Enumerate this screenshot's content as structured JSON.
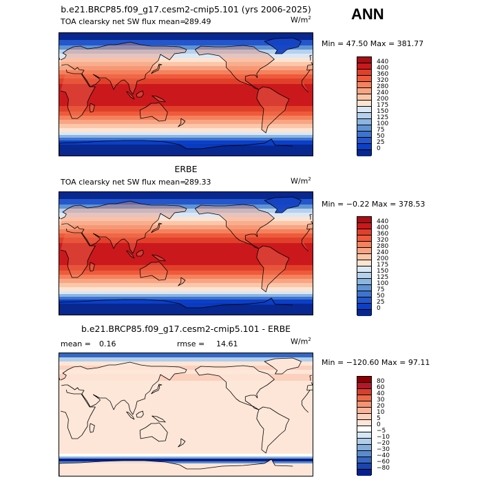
{
  "season": "ANN",
  "panels": [
    {
      "id": "model",
      "title": "b.e21.BRCP85.f09_g17.cesm2-cmip5.101 (yrs 2006-2025)",
      "field": "TOA clearsky net SW flux",
      "mean_label": "mean=",
      "mean": "289.49",
      "units_base": "W/m",
      "units_exp": "2",
      "minmax": "Min =  47.50 Max = 381.77",
      "levels": [
        "440",
        "400",
        "360",
        "320",
        "280",
        "240",
        "200",
        "175",
        "150",
        "125",
        "100",
        "75",
        "50",
        "25",
        "0"
      ],
      "colors": [
        "#a50f15",
        "#cb181d",
        "#e0402a",
        "#ef5a3c",
        "#f4825c",
        "#f8a585",
        "#fbc7a8",
        "#fde4d2",
        "#dae8f6",
        "#b7d1ec",
        "#8cb5e0",
        "#5f93d4",
        "#3e74cf",
        "#2456cc",
        "#0b3fc8",
        "#08278f"
      ]
    },
    {
      "id": "obs",
      "title": "ERBE",
      "field": "TOA clearsky net SW flux",
      "mean_label": "mean=",
      "mean": "289.33",
      "units_base": "W/m",
      "units_exp": "2",
      "minmax": "Min =  −0.22 Max = 378.53",
      "levels": [
        "440",
        "400",
        "360",
        "320",
        "280",
        "240",
        "200",
        "175",
        "150",
        "125",
        "100",
        "75",
        "50",
        "25",
        "0"
      ],
      "colors": [
        "#a50f15",
        "#cb181d",
        "#e0402a",
        "#ef5a3c",
        "#f4825c",
        "#f8a585",
        "#fbc7a8",
        "#fde4d2",
        "#dae8f6",
        "#b7d1ec",
        "#8cb5e0",
        "#5f93d4",
        "#3e74cf",
        "#2456cc",
        "#0b3fc8",
        "#08278f"
      ]
    },
    {
      "id": "diff",
      "title": "b.e21.BRCP85.f09_g17.cesm2-cmip5.101 - ERBE",
      "mean_label": "mean =",
      "mean": "0.16",
      "rmse_label": "rmse =",
      "rmse": "14.61",
      "units_base": "W/m",
      "units_exp": "2",
      "minmax": "Min = −120.60 Max =  97.11",
      "levels": [
        "80",
        "60",
        "40",
        "30",
        "20",
        "10",
        "5",
        "0",
        "−5",
        "−10",
        "−20",
        "−30",
        "−40",
        "−60",
        "−80"
      ],
      "colors": [
        "#8b0000",
        "#b2182b",
        "#d6402f",
        "#ec6a48",
        "#f59373",
        "#f9b59b",
        "#fbd0bc",
        "#fde6d8",
        "#ffffff",
        "#d6e6f5",
        "#b0cde9",
        "#84addb",
        "#5b8bcd",
        "#3567c3",
        "#1c44b0",
        "#08208c"
      ]
    }
  ],
  "chart_data": [
    {
      "type": "heatmap",
      "title": "b.e21.BRCP85.f09_g17.cesm2-cmip5.101 (yrs 2006-2025)",
      "field": "TOA clearsky net SW flux",
      "units": "W/m2",
      "mean": 289.49,
      "min": 47.5,
      "max": 381.77,
      "contour_levels": [
        0,
        25,
        50,
        75,
        100,
        125,
        150,
        175,
        200,
        240,
        280,
        320,
        360,
        400,
        440
      ]
    },
    {
      "type": "heatmap",
      "title": "ERBE",
      "field": "TOA clearsky net SW flux",
      "units": "W/m2",
      "mean": 289.33,
      "min": -0.22,
      "max": 378.53,
      "contour_levels": [
        0,
        25,
        50,
        75,
        100,
        125,
        150,
        175,
        200,
        240,
        280,
        320,
        360,
        400,
        440
      ]
    },
    {
      "type": "heatmap",
      "title": "b.e21.BRCP85.f09_g17.cesm2-cmip5.101 - ERBE",
      "units": "W/m2",
      "mean": 0.16,
      "rmse": 14.61,
      "min": -120.6,
      "max": 97.11,
      "contour_levels": [
        -80,
        -60,
        -40,
        -30,
        -20,
        -10,
        -5,
        0,
        5,
        10,
        20,
        30,
        40,
        60,
        80
      ]
    }
  ]
}
